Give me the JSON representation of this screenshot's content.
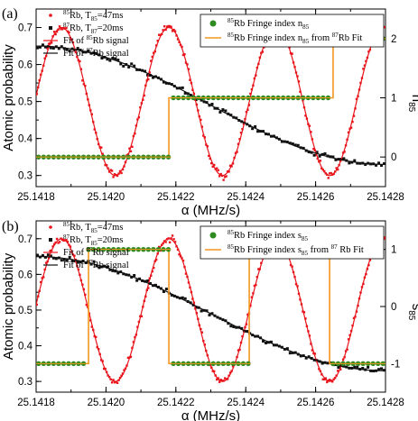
{
  "chart_data": [
    {
      "type": "scatter",
      "panel_label": "(a)",
      "xlabel": "α (MHz/s)",
      "ylabel": "Atomic probability",
      "y2label": "n",
      "y2label_sub": "85",
      "xlim": [
        25.1418,
        25.1428
      ],
      "ylim": [
        0.27,
        0.75
      ],
      "y2lim": [
        -0.5,
        2.5
      ],
      "x_ticks": [
        "25.1418",
        "25.1420",
        "25.1422",
        "25.1424",
        "25.1426",
        "25.1428"
      ],
      "y_ticks": [
        "0.3",
        "0.4",
        "0.5",
        "0.6",
        "0.7"
      ],
      "y2_ticks": [
        "0",
        "1",
        "2"
      ],
      "legend_left": {
        "placement": "top-left",
        "entries": [
          {
            "sup": "85",
            "main": "Rb, T",
            "sub": "85",
            "tail": "=47ms"
          },
          {
            "sup": "87",
            "main": "Rb, T",
            "sub": "87",
            "tail": "=20ms"
          },
          {
            "pre": "Fit of ",
            "sup": "85",
            "tail": "Rb signal"
          },
          {
            "pre": "Fit of ",
            "sup": "87",
            "tail": "Rb signal"
          }
        ]
      },
      "legend_right": {
        "placement": "top-right",
        "entries": [
          {
            "sup": "85",
            "main": "Rb Fringe index n",
            "sub": "85"
          },
          {
            "sup": "85",
            "main": "Rb Fringe index n",
            "sub": "85",
            "mid": " from ",
            "sup2": "87",
            "tail": "Rb Fit"
          }
        ]
      },
      "colors": {
        "rb85": "#e8141b",
        "rb87": "#111111",
        "index_dot": "#2e8b20",
        "index_line": "#f5961e"
      },
      "series": [
        {
          "name": "85Rb, T85=47ms",
          "fit": {
            "model": "cosine",
            "offset": 0.5,
            "amplitude": 0.2,
            "period": 0.000307,
            "peak_x": 25.14218
          }
        },
        {
          "name": "87Rb, T87=20ms",
          "fit": {
            "model": "cosine",
            "offset": 0.49,
            "amplitude": 0.16,
            "period": 0.002,
            "peak_x": 25.1418
          }
        },
        {
          "name": "85Rb Fringe index n85",
          "segments": [
            {
              "x_start": 25.1418,
              "x_end": 25.14218,
              "value": 0
            },
            {
              "x_start": 25.14218,
              "x_end": 25.14265,
              "value": 1
            },
            {
              "x_start": 25.14265,
              "x_end": 25.1428,
              "value": 2
            }
          ]
        },
        {
          "name": "85Rb Fringe index n85 from 87Rb Fit",
          "segments": [
            {
              "x_start": 25.1418,
              "x_end": 25.14218,
              "value": 0
            },
            {
              "x_start": 25.14218,
              "x_end": 25.14265,
              "value": 1
            },
            {
              "x_start": 25.14265,
              "x_end": 25.1428,
              "value": 2
            }
          ]
        }
      ]
    },
    {
      "type": "scatter",
      "panel_label": "(b)",
      "xlabel": "α (MHz/s)",
      "ylabel": "Atomic probability",
      "y2label": "s",
      "y2label_sub": "85",
      "xlim": [
        25.1418,
        25.1428
      ],
      "ylim": [
        0.27,
        0.75
      ],
      "y2lim": [
        -1.5,
        1.5
      ],
      "x_ticks": [
        "25.1418",
        "25.1420",
        "25.1422",
        "25.1424",
        "25.1426",
        "25.1428"
      ],
      "y_ticks": [
        "0.3",
        "0.4",
        "0.5",
        "0.6",
        "0.7"
      ],
      "y2_ticks": [
        "-1",
        "0",
        "1"
      ],
      "legend_left": {
        "placement": "top-left",
        "entries": [
          {
            "sup": "85",
            "main": "Rb, T",
            "sub": "85",
            "tail": "=47ms"
          },
          {
            "sup": "87",
            "main": "Rb, T",
            "sub": "85",
            "tail": "=20ms"
          },
          {
            "pre": "Fit of ",
            "sup": "85",
            "tail": "Rb signal"
          },
          {
            "pre": "Fit of ",
            "sup": "87",
            "tail": "Rb signal"
          }
        ]
      },
      "legend_right": {
        "placement": "top-right",
        "entries": [
          {
            "sup": "85",
            "main": "Rb Fringe index s",
            "sub": "85"
          },
          {
            "sup": "85",
            "main": "Rb Fringe index s",
            "sub": "85",
            "mid": " from ",
            "sup2": "87",
            "tail": " Rb Fit"
          }
        ]
      },
      "colors": {
        "rb85": "#e8141b",
        "rb87": "#111111",
        "index_dot": "#2e8b20",
        "index_line": "#f5961e"
      },
      "series": [
        {
          "name": "85Rb, T85=47ms",
          "fit": {
            "model": "cosine",
            "offset": 0.5,
            "amplitude": 0.2,
            "period": 0.000307,
            "peak_x": 25.14218
          }
        },
        {
          "name": "87Rb, T85=20ms",
          "fit": {
            "model": "cosine",
            "offset": 0.49,
            "amplitude": 0.16,
            "period": 0.002,
            "peak_x": 25.1418
          }
        },
        {
          "name": "85Rb Fringe index s85",
          "segments": [
            {
              "x_start": 25.1418,
              "x_end": 25.14195,
              "value": -1
            },
            {
              "x_start": 25.14195,
              "x_end": 25.14218,
              "value": 1
            },
            {
              "x_start": 25.14218,
              "x_end": 25.14241,
              "value": -1
            },
            {
              "x_start": 25.14241,
              "x_end": 25.14264,
              "value": 1
            },
            {
              "x_start": 25.14264,
              "x_end": 25.1428,
              "value": -1
            }
          ]
        },
        {
          "name": "85Rb Fringe index s85 from 87Rb Fit",
          "segments": [
            {
              "x_start": 25.1418,
              "x_end": 25.14195,
              "value": -1
            },
            {
              "x_start": 25.14195,
              "x_end": 25.14218,
              "value": 1
            },
            {
              "x_start": 25.14218,
              "x_end": 25.14241,
              "value": -1
            },
            {
              "x_start": 25.14241,
              "x_end": 25.14264,
              "value": 1
            },
            {
              "x_start": 25.14264,
              "x_end": 25.1428,
              "value": -1
            }
          ]
        }
      ]
    }
  ]
}
